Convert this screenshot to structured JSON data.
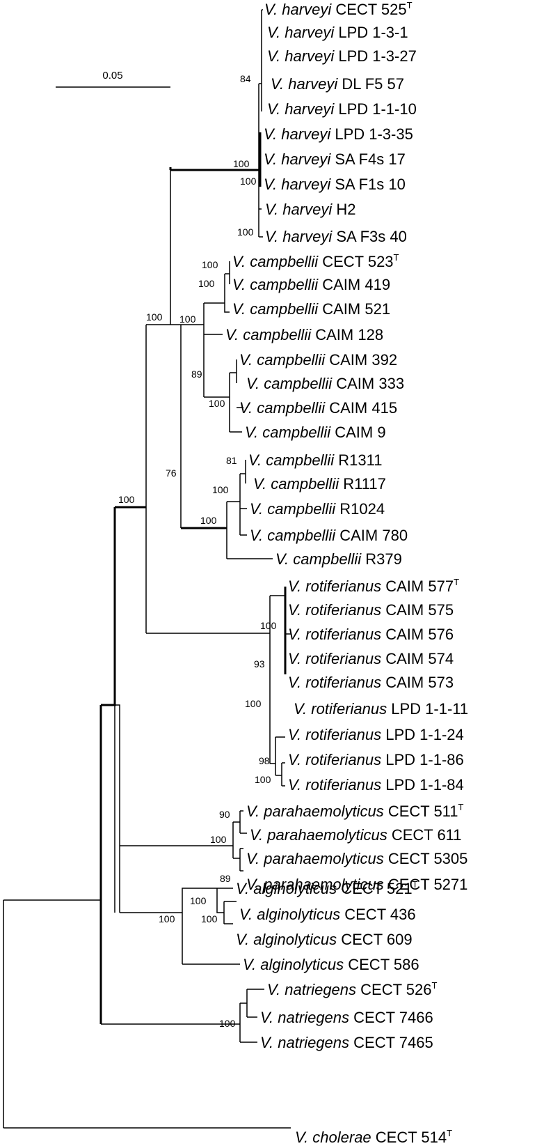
{
  "scale_bar": {
    "label": "0.05"
  },
  "taxa": [
    {
      "genus": "V.",
      "species": "harveyi",
      "strain": "CECT 525",
      "sup": "T"
    },
    {
      "genus": "V.",
      "species": "harveyi",
      "strain": "LPD 1-3-1",
      "sup": ""
    },
    {
      "genus": "V.",
      "species": "harveyi",
      "strain": "LPD 1-3-27",
      "sup": ""
    },
    {
      "genus": "V.",
      "species": "harveyi",
      "strain": "DL F5 57",
      "sup": ""
    },
    {
      "genus": "V.",
      "species": "harveyi",
      "strain": "LPD 1-1-10",
      "sup": ""
    },
    {
      "genus": "V.",
      "species": "harveyi",
      "strain": "LPD 1-3-35",
      "sup": ""
    },
    {
      "genus": "V.",
      "species": "harveyi",
      "strain": "SA F4s 17",
      "sup": ""
    },
    {
      "genus": "V.",
      "species": "harveyi",
      "strain": "SA F1s 10",
      "sup": ""
    },
    {
      "genus": "V.",
      "species": "harveyi",
      "strain": "H2",
      "sup": ""
    },
    {
      "genus": "V.",
      "species": "harveyi",
      "strain": "SA F3s 40",
      "sup": ""
    },
    {
      "genus": "V.",
      "species": "campbellii",
      "strain": "CECT 523",
      "sup": "T"
    },
    {
      "genus": "V.",
      "species": "campbellii",
      "strain": "CAIM 419",
      "sup": ""
    },
    {
      "genus": "V.",
      "species": "campbellii",
      "strain": "CAIM 521",
      "sup": ""
    },
    {
      "genus": "V.",
      "species": "campbellii",
      "strain": "CAIM 128",
      "sup": ""
    },
    {
      "genus": "V.",
      "species": "campbellii",
      "strain": "CAIM 392",
      "sup": ""
    },
    {
      "genus": "V.",
      "species": "campbellii",
      "strain": "CAIM 333",
      "sup": ""
    },
    {
      "genus": "V.",
      "species": "campbellii",
      "strain": "CAIM 415",
      "sup": ""
    },
    {
      "genus": "V.",
      "species": "campbellii",
      "strain": "CAIM 9",
      "sup": ""
    },
    {
      "genus": "V.",
      "species": "campbellii",
      "strain": "R1311",
      "sup": ""
    },
    {
      "genus": "V.",
      "species": "campbellii",
      "strain": "R1117",
      "sup": ""
    },
    {
      "genus": "V.",
      "species": "campbellii",
      "strain": "R1024",
      "sup": ""
    },
    {
      "genus": "V.",
      "species": "campbellii",
      "strain": "CAIM 780",
      "sup": ""
    },
    {
      "genus": "V.",
      "species": "campbellii",
      "strain": "R379",
      "sup": ""
    },
    {
      "genus": "V.",
      "species": "rotiferianus",
      "strain": "CAIM 577",
      "sup": "T"
    },
    {
      "genus": "V.",
      "species": "rotiferianus",
      "strain": "CAIM 575",
      "sup": ""
    },
    {
      "genus": "V.",
      "species": "rotiferianus",
      "strain": "CAIM 576",
      "sup": ""
    },
    {
      "genus": "V.",
      "species": "rotiferianus",
      "strain": "CAIM 574",
      "sup": ""
    },
    {
      "genus": "V.",
      "species": "rotiferianus",
      "strain": "CAIM 573",
      "sup": ""
    },
    {
      "genus": "V.",
      "species": "rotiferianus",
      "strain": "LPD 1-1-11",
      "sup": ""
    },
    {
      "genus": "V.",
      "species": "rotiferianus",
      "strain": "LPD 1-1-24",
      "sup": ""
    },
    {
      "genus": "V.",
      "species": "rotiferianus",
      "strain": "LPD 1-1-86",
      "sup": ""
    },
    {
      "genus": "V.",
      "species": "rotiferianus",
      "strain": "LPD 1-1-84",
      "sup": ""
    },
    {
      "genus": "V.",
      "species": "parahaemolyticus",
      "strain": "CECT 511",
      "sup": "T"
    },
    {
      "genus": "V.",
      "species": "parahaemolyticus",
      "strain": "CECT 611",
      "sup": ""
    },
    {
      "genus": "V.",
      "species": "parahaemolyticus",
      "strain": "CECT 5305",
      "sup": ""
    },
    {
      "genus": "V.",
      "species": "parahaemolyticus",
      "strain": "CECT 5271",
      "sup": ""
    },
    {
      "genus": "V.",
      "species": "alginolyticus",
      "strain": "CECT 521",
      "sup": "T"
    },
    {
      "genus": "V.",
      "species": "alginolyticus",
      "strain": "CECT 436",
      "sup": ""
    },
    {
      "genus": "V.",
      "species": "alginolyticus",
      "strain": "CECT 609",
      "sup": ""
    },
    {
      "genus": "V.",
      "species": "alginolyticus",
      "strain": "CECT 586",
      "sup": ""
    },
    {
      "genus": "V.",
      "species": "natriegens",
      "strain": "CECT 526",
      "sup": "T"
    },
    {
      "genus": "V.",
      "species": "natriegens",
      "strain": "CECT 7466",
      "sup": ""
    },
    {
      "genus": "V.",
      "species": "natriegens",
      "strain": "CECT 7465",
      "sup": ""
    },
    {
      "genus": "V.",
      "species": "cholerae",
      "strain": "CECT 514",
      "sup": "T"
    }
  ],
  "bootstrap_values": [
    "84",
    "100",
    "100",
    "100",
    "100",
    "100",
    "100",
    "100",
    "89",
    "100",
    "76",
    "81",
    "100",
    "100",
    "100",
    "100",
    "93",
    "100",
    "98",
    "100",
    "90",
    "100",
    "89",
    "100",
    "100",
    "100",
    "100"
  ]
}
